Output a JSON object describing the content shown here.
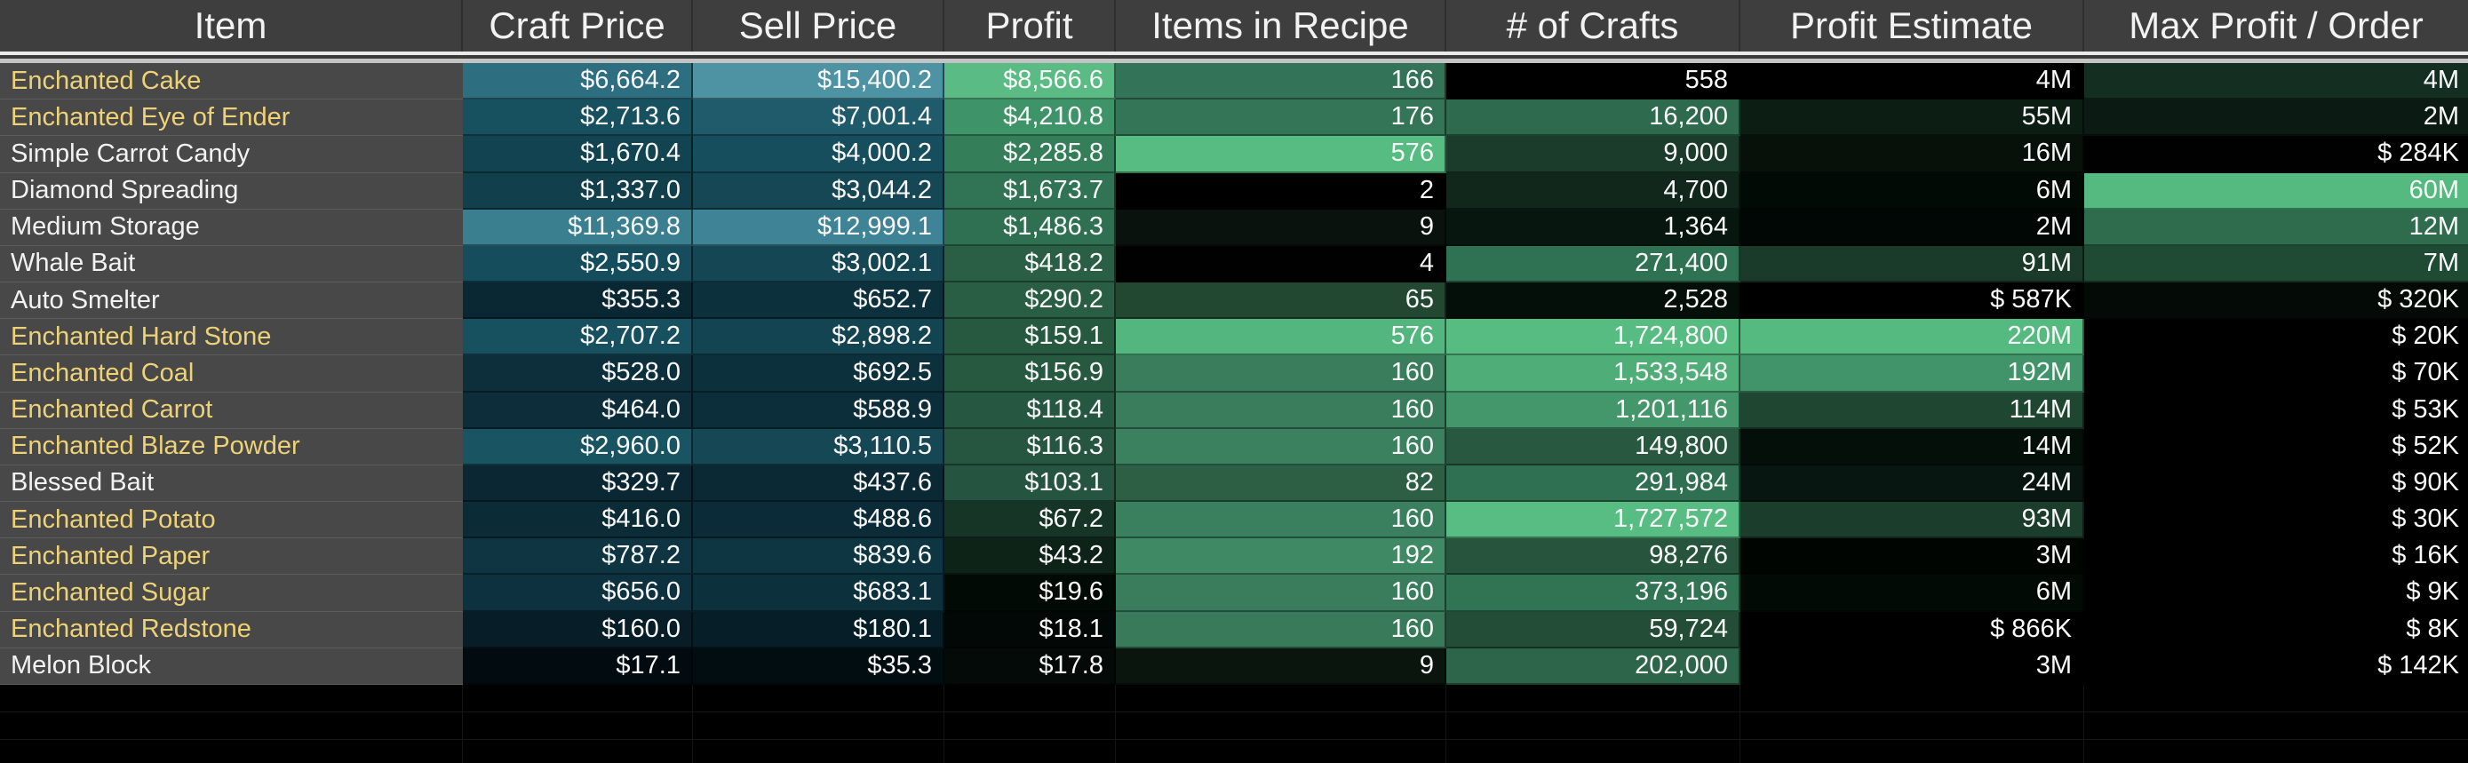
{
  "colors": {
    "header_bg": "#3E3E3E",
    "header_text": "#F2F2F2",
    "item_col_bg": "#484848",
    "item_gold": "#EDD277",
    "item_white": "#F2F2F2",
    "value_text": "#FAFAFA",
    "freeze_band_light": "#EAEAEA",
    "freeze_band_gray": "#C4C4C4",
    "empty_bg": "#000000"
  },
  "table": {
    "columns": [
      {
        "label": "Item"
      },
      {
        "label": "Craft Price"
      },
      {
        "label": "Sell Price"
      },
      {
        "label": "Profit"
      },
      {
        "label": "Items in Recipe"
      },
      {
        "label": "# of Crafts"
      },
      {
        "label": "Profit Estimate"
      },
      {
        "label": "Max Profit / Order"
      }
    ],
    "rows": [
      {
        "item": {
          "text": "Enchanted Cake",
          "color": "gold"
        },
        "cells": [
          {
            "text": "$6,664.2",
            "bg": "#2D6E80"
          },
          {
            "text": "$15,400.2",
            "bg": "#4D93A4"
          },
          {
            "text": "$8,566.6",
            "bg": "#5BBB85"
          },
          {
            "text": "166",
            "bg": "#337458"
          },
          {
            "text": "558",
            "bg": "#000000"
          },
          {
            "text": "4M",
            "bg": "#000000"
          },
          {
            "text": "4M",
            "bg": "#142F21"
          }
        ]
      },
      {
        "item": {
          "text": "Enchanted Eye of Ender",
          "color": "gold"
        },
        "cells": [
          {
            "text": "$2,713.6",
            "bg": "#17505F"
          },
          {
            "text": "$7,001.4",
            "bg": "#1F5B6B"
          },
          {
            "text": "$4,210.8",
            "bg": "#3F9368"
          },
          {
            "text": "176",
            "bg": "#347457"
          },
          {
            "text": "16,200",
            "bg": "#2E6B4E"
          },
          {
            "text": "55M",
            "bg": "#0C1D14"
          },
          {
            "text": "2M",
            "bg": "#0B1B13"
          }
        ]
      },
      {
        "item": {
          "text": "Simple Carrot Candy",
          "color": "white"
        },
        "cells": [
          {
            "text": "$1,670.4",
            "bg": "#124350"
          },
          {
            "text": "$4,000.2",
            "bg": "#164E5D"
          },
          {
            "text": "$2,285.8",
            "bg": "#357E5A"
          },
          {
            "text": "576",
            "bg": "#57BC82"
          },
          {
            "text": "9,000",
            "bg": "#1B3C2B"
          },
          {
            "text": "16M",
            "bg": "#071009"
          },
          {
            "text": "$ 284K",
            "bg": "#010101"
          }
        ]
      },
      {
        "item": {
          "text": "Diamond Spreading",
          "color": "white"
        },
        "cells": [
          {
            "text": "$1,337.0",
            "bg": "#113F4B"
          },
          {
            "text": "$3,044.2",
            "bg": "#154755"
          },
          {
            "text": "$1,673.7",
            "bg": "#317355"
          },
          {
            "text": "2",
            "bg": "#000000"
          },
          {
            "text": "4,700",
            "bg": "#12271C"
          },
          {
            "text": "6M",
            "bg": "#020A06"
          },
          {
            "text": "60M",
            "bg": "#55BA80"
          }
        ]
      },
      {
        "item": {
          "text": "Medium Storage",
          "color": "white"
        },
        "cells": [
          {
            "text": "$11,369.8",
            "bg": "#3A7F90"
          },
          {
            "text": "$12,999.1",
            "bg": "#3F8496"
          },
          {
            "text": "$1,486.3",
            "bg": "#307052"
          },
          {
            "text": "9",
            "bg": "#0A120D"
          },
          {
            "text": "1,364",
            "bg": "#071710"
          },
          {
            "text": "2M",
            "bg": "#010704"
          },
          {
            "text": "12M",
            "bg": "#2E6C4D"
          }
        ]
      },
      {
        "item": {
          "text": "Whale Bait",
          "color": "white"
        },
        "cells": [
          {
            "text": "$2,550.9",
            "bg": "#164D5C"
          },
          {
            "text": "$3,002.1",
            "bg": "#144654"
          },
          {
            "text": "$418.2",
            "bg": "#2A5F46"
          },
          {
            "text": "4",
            "bg": "#010101"
          },
          {
            "text": "271,400",
            "bg": "#2F7253"
          },
          {
            "text": "91M",
            "bg": "#1A3B2A"
          },
          {
            "text": "7M",
            "bg": "#1F4B35"
          }
        ]
      },
      {
        "item": {
          "text": "Auto Smelter",
          "color": "white"
        },
        "cells": [
          {
            "text": "$355.3",
            "bg": "#0A2834"
          },
          {
            "text": "$652.7",
            "bg": "#0C303C"
          },
          {
            "text": "$290.2",
            "bg": "#295D44"
          },
          {
            "text": "65",
            "bg": "#234831"
          },
          {
            "text": "2,528",
            "bg": "#030F08"
          },
          {
            "text": "$ 587K",
            "bg": "#000000"
          },
          {
            "text": "$ 320K",
            "bg": "#040B07"
          }
        ]
      },
      {
        "item": {
          "text": "Enchanted Hard Stone",
          "color": "gold"
        },
        "cells": [
          {
            "text": "$2,707.2",
            "bg": "#17505F"
          },
          {
            "text": "$2,898.2",
            "bg": "#134451"
          },
          {
            "text": "$159.1",
            "bg": "#275941"
          },
          {
            "text": "576",
            "bg": "#53B67E"
          },
          {
            "text": "1,724,800",
            "bg": "#57BC82"
          },
          {
            "text": "220M",
            "bg": "#55BA80"
          },
          {
            "text": "$ 20K",
            "bg": "#000000"
          }
        ]
      },
      {
        "item": {
          "text": "Enchanted Coal",
          "color": "gold"
        },
        "cells": [
          {
            "text": "$528.0",
            "bg": "#0C2F3B"
          },
          {
            "text": "$692.5",
            "bg": "#0C313D"
          },
          {
            "text": "$156.9",
            "bg": "#275941"
          },
          {
            "text": "160",
            "bg": "#3A7D5C"
          },
          {
            "text": "1,533,548",
            "bg": "#4FAE78"
          },
          {
            "text": "192M",
            "bg": "#41946A"
          },
          {
            "text": "$ 70K",
            "bg": "#000000"
          }
        ]
      },
      {
        "item": {
          "text": "Enchanted Carrot",
          "color": "gold"
        },
        "cells": [
          {
            "text": "$464.0",
            "bg": "#0C2D39"
          },
          {
            "text": "$588.9",
            "bg": "#0B2E3A"
          },
          {
            "text": "$118.4",
            "bg": "#265740"
          },
          {
            "text": "160",
            "bg": "#3A7D5C"
          },
          {
            "text": "1,201,116",
            "bg": "#44966B"
          },
          {
            "text": "114M",
            "bg": "#1E4631"
          },
          {
            "text": "$ 53K",
            "bg": "#000000"
          }
        ]
      },
      {
        "item": {
          "text": "Enchanted Blaze Powder",
          "color": "gold"
        },
        "cells": [
          {
            "text": "$2,960.0",
            "bg": "#185461"
          },
          {
            "text": "$3,110.5",
            "bg": "#154754"
          },
          {
            "text": "$116.3",
            "bg": "#26563F"
          },
          {
            "text": "160",
            "bg": "#3B8160"
          },
          {
            "text": "149,800",
            "bg": "#285940"
          },
          {
            "text": "14M",
            "bg": "#050F0A"
          },
          {
            "text": "$ 52K",
            "bg": "#000000"
          }
        ]
      },
      {
        "item": {
          "text": "Blessed Bait",
          "color": "white"
        },
        "cells": [
          {
            "text": "$329.7",
            "bg": "#0A2733"
          },
          {
            "text": "$437.6",
            "bg": "#0A2935"
          },
          {
            "text": "$103.1",
            "bg": "#255540"
          },
          {
            "text": "82",
            "bg": "#2C5F44"
          },
          {
            "text": "291,984",
            "bg": "#2F7052"
          },
          {
            "text": "24M",
            "bg": "#081611"
          },
          {
            "text": "$ 90K",
            "bg": "#000000"
          }
        ]
      },
      {
        "item": {
          "text": "Enchanted Potato",
          "color": "gold"
        },
        "cells": [
          {
            "text": "$416.0",
            "bg": "#0B2B37"
          },
          {
            "text": "$488.6",
            "bg": "#0A2B37"
          },
          {
            "text": "$67.2",
            "bg": "#163527"
          },
          {
            "text": "160",
            "bg": "#3A7F5E"
          },
          {
            "text": "1,727,572",
            "bg": "#58BD83"
          },
          {
            "text": "93M",
            "bg": "#1B3D2C"
          },
          {
            "text": "$ 30K",
            "bg": "#000000"
          }
        ]
      },
      {
        "item": {
          "text": "Enchanted Paper",
          "color": "gold"
        },
        "cells": [
          {
            "text": "$787.2",
            "bg": "#0E3541"
          },
          {
            "text": "$839.6",
            "bg": "#0E3642"
          },
          {
            "text": "$43.2",
            "bg": "#0E2318"
          },
          {
            "text": "192",
            "bg": "#3F8A64"
          },
          {
            "text": "98,276",
            "bg": "#26543C"
          },
          {
            "text": "3M",
            "bg": "#010502"
          },
          {
            "text": "$ 16K",
            "bg": "#000000"
          }
        ]
      },
      {
        "item": {
          "text": "Enchanted Sugar",
          "color": "gold"
        },
        "cells": [
          {
            "text": "$656.0",
            "bg": "#0D313E"
          },
          {
            "text": "$683.1",
            "bg": "#0C313D"
          },
          {
            "text": "$19.6",
            "bg": "#020A06"
          },
          {
            "text": "160",
            "bg": "#3A7D5C"
          },
          {
            "text": "373,196",
            "bg": "#307454"
          },
          {
            "text": "6M",
            "bg": "#020A06"
          },
          {
            "text": "$ 9K",
            "bg": "#000000"
          }
        ]
      },
      {
        "item": {
          "text": "Enchanted Redstone",
          "color": "gold"
        },
        "cells": [
          {
            "text": "$160.0",
            "bg": "#071D27"
          },
          {
            "text": "$180.1",
            "bg": "#061E28"
          },
          {
            "text": "$18.1",
            "bg": "#020805"
          },
          {
            "text": "160",
            "bg": "#387A59"
          },
          {
            "text": "59,724",
            "bg": "#234D37"
          },
          {
            "text": "$ 866K",
            "bg": "#000000"
          },
          {
            "text": "$ 8K",
            "bg": "#000000"
          }
        ]
      },
      {
        "item": {
          "text": "Melon Block",
          "color": "white"
        },
        "cells": [
          {
            "text": "$17.1",
            "bg": "#010B10"
          },
          {
            "text": "$35.3",
            "bg": "#020D12"
          },
          {
            "text": "$17.8",
            "bg": "#030A07"
          },
          {
            "text": "9",
            "bg": "#0A150E"
          },
          {
            "text": "202,000",
            "bg": "#2C6549"
          },
          {
            "text": "3M",
            "bg": "#000000"
          },
          {
            "text": "$ 142K",
            "bg": "#000000"
          }
        ]
      }
    ]
  }
}
